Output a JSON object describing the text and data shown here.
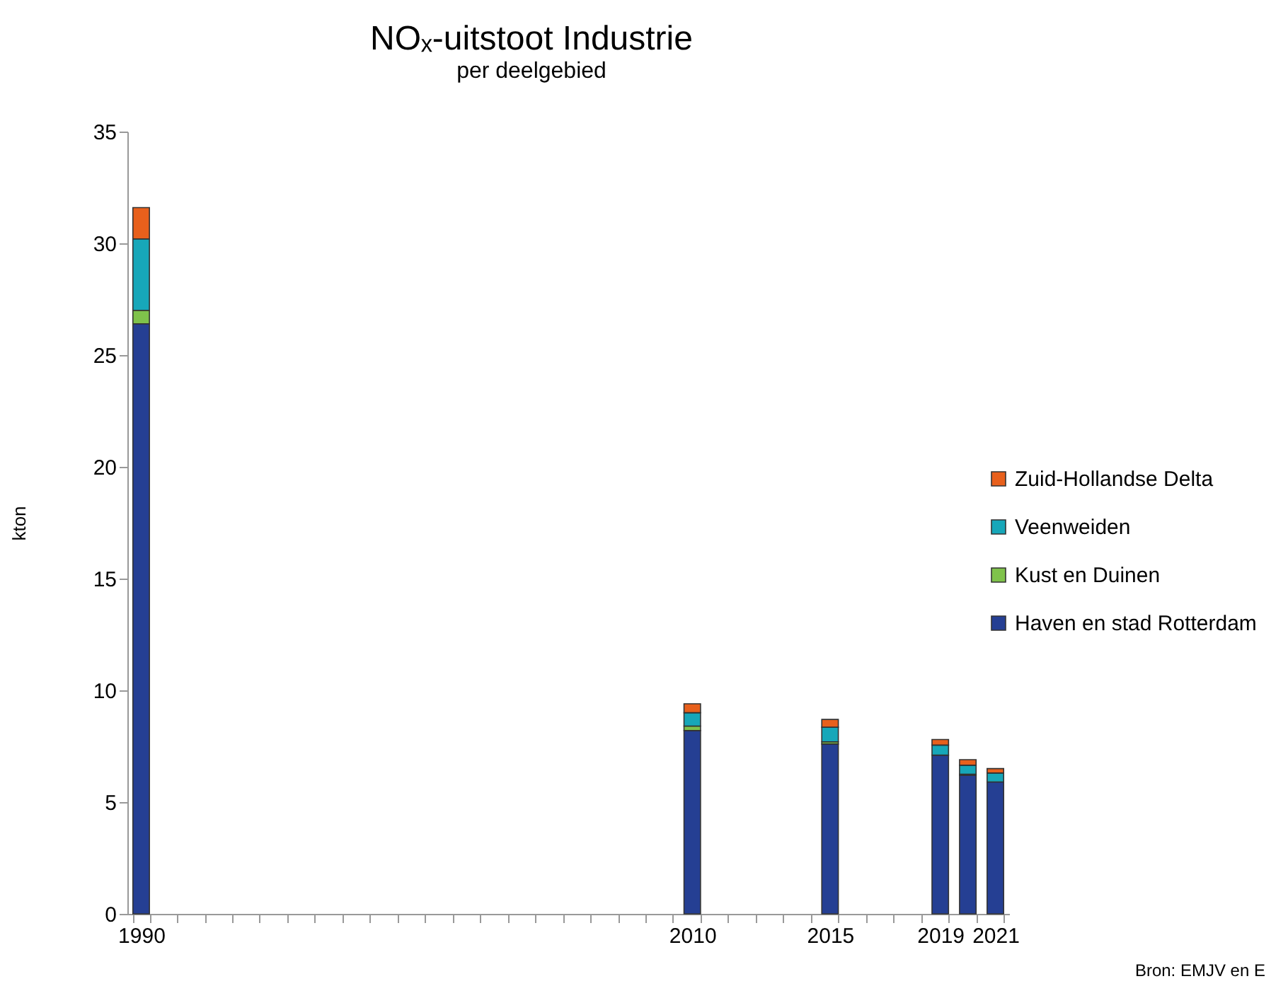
{
  "chart_data": {
    "type": "bar",
    "title": "NOₓ-uitstoot Industrie",
    "subtitle": "per deelgebied",
    "ylabel": "kton",
    "stacked": true,
    "categories": [
      "1990",
      null,
      null,
      null,
      null,
      null,
      null,
      null,
      null,
      null,
      null,
      null,
      null,
      null,
      null,
      null,
      null,
      null,
      null,
      null,
      "2010",
      null,
      null,
      null,
      null,
      "2015",
      null,
      null,
      null,
      "2019",
      null,
      "2021"
    ],
    "series": [
      {
        "name": "Haven en stad Rotterdam",
        "color": "#253f93",
        "values": [
          26.4,
          null,
          null,
          null,
          null,
          null,
          null,
          null,
          null,
          null,
          null,
          null,
          null,
          null,
          null,
          null,
          null,
          null,
          null,
          null,
          8.2,
          null,
          null,
          null,
          null,
          7.6,
          null,
          null,
          null,
          7.1,
          6.2,
          5.9
        ]
      },
      {
        "name": "Kust en Duinen",
        "color": "#7fc24b",
        "values": [
          0.6,
          null,
          null,
          null,
          null,
          null,
          null,
          null,
          null,
          null,
          null,
          null,
          null,
          null,
          null,
          null,
          null,
          null,
          null,
          null,
          0.2,
          null,
          null,
          null,
          null,
          0.1,
          null,
          null,
          null,
          null,
          0.05,
          null
        ]
      },
      {
        "name": "Veenweiden",
        "color": "#17a7b9",
        "values": [
          3.2,
          null,
          null,
          null,
          null,
          null,
          null,
          null,
          null,
          null,
          null,
          null,
          null,
          null,
          null,
          null,
          null,
          null,
          null,
          null,
          0.6,
          null,
          null,
          null,
          null,
          0.65,
          null,
          null,
          null,
          0.45,
          0.4,
          0.4
        ]
      },
      {
        "name": "Zuid-Hollandse Delta",
        "color": "#e8601c",
        "values": [
          1.4,
          null,
          null,
          null,
          null,
          null,
          null,
          null,
          null,
          null,
          null,
          null,
          null,
          null,
          null,
          null,
          null,
          null,
          null,
          null,
          0.4,
          null,
          null,
          null,
          null,
          0.35,
          null,
          null,
          null,
          0.25,
          0.25,
          0.2
        ]
      }
    ],
    "ylim": [
      0,
      35
    ],
    "yticks": [
      0,
      5,
      10,
      15,
      20,
      25,
      30,
      35
    ],
    "legend": "right",
    "grid": false,
    "annotations": [
      "Bron: EMJV en E"
    ]
  }
}
